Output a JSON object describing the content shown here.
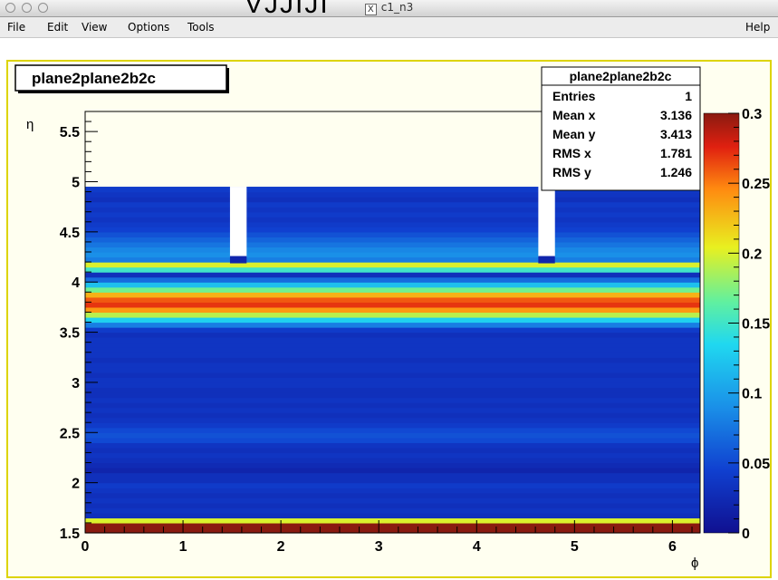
{
  "window": {
    "title": "c1_n3",
    "top_fragment": "VJJIJI"
  },
  "menu": {
    "file": "File",
    "edit": "Edit",
    "view": "View",
    "options": "Options",
    "tools": "Tools",
    "help": "Help"
  },
  "colors": {
    "frame_border": "#ddd400",
    "canvas_bg": "#fffff0"
  },
  "chart_data": {
    "type": "heatmap",
    "title": "plane2plane2b2c",
    "xlabel": "ϕ",
    "ylabel": "η",
    "xlim": [
      0,
      6.283
    ],
    "ylim": [
      1.5,
      5.7
    ],
    "zlim": [
      0,
      0.3
    ],
    "x_ticks": [
      "0",
      "1",
      "2",
      "3",
      "4",
      "5",
      "6"
    ],
    "y_ticks": [
      "1.5",
      "2",
      "2.5",
      "3",
      "3.5",
      "4",
      "4.5",
      "5",
      "5.5"
    ],
    "z_ticks": [
      "0",
      "0.05",
      "0.1",
      "0.15",
      "0.2",
      "0.25",
      "0.3"
    ],
    "y_edges": [
      1.6,
      1.65,
      1.7,
      1.75,
      1.8,
      1.85,
      1.9,
      1.95,
      2.0,
      2.05,
      2.1,
      2.15,
      2.2,
      2.25,
      2.3,
      2.35,
      2.4,
      2.45,
      2.5,
      2.55,
      2.6,
      2.65,
      2.7,
      2.75,
      2.8,
      2.85,
      2.9,
      2.95,
      3.0,
      3.05,
      3.1,
      3.15,
      3.2,
      3.25,
      3.3,
      3.35,
      3.4,
      3.45,
      3.5,
      3.55,
      3.6,
      3.65,
      3.7,
      3.75,
      3.8,
      3.85,
      3.9,
      3.95,
      4.0,
      4.05,
      4.1,
      4.15,
      4.2,
      4.25,
      4.3,
      4.35,
      4.4,
      4.45,
      4.5,
      4.55,
      4.6,
      4.65,
      4.7,
      4.75,
      4.8,
      4.85,
      4.9,
      4.95
    ],
    "row_values": [
      0.3,
      0.2,
      0.03,
      0.035,
      0.03,
      0.035,
      0.03,
      0.035,
      0.04,
      0.03,
      0.03,
      0.02,
      0.025,
      0.03,
      0.035,
      0.03,
      0.035,
      0.05,
      0.055,
      0.05,
      0.04,
      0.035,
      0.03,
      0.035,
      0.03,
      0.035,
      0.03,
      0.03,
      0.035,
      0.035,
      0.03,
      0.035,
      0.035,
      0.03,
      0.035,
      0.035,
      0.035,
      0.035,
      0.03,
      0.04,
      0.08,
      0.13,
      0.19,
      0.24,
      0.27,
      0.26,
      0.23,
      0.17,
      0.12,
      0.07,
      0.03,
      0.15,
      0.2,
      0.08,
      0.09,
      0.085,
      0.075,
      0.065,
      0.055,
      0.045,
      0.04,
      0.035,
      0.04,
      0.035,
      0.04,
      0.03,
      0.035,
      0.04
    ],
    "gaps": [
      {
        "x_from": 1.48,
        "x_to": 1.65,
        "y_from": 4.25,
        "y_to": 4.95
      },
      {
        "x_from": 4.63,
        "x_to": 4.8,
        "y_from": 4.25,
        "y_to": 4.95
      }
    ],
    "stats": {
      "title": "plane2plane2b2c",
      "rows": [
        {
          "label": "Entries",
          "value": "1"
        },
        {
          "label": "Mean x",
          "value": "3.136"
        },
        {
          "label": "Mean y",
          "value": "3.413"
        },
        {
          "label": "RMS x",
          "value": "1.781"
        },
        {
          "label": "RMS y",
          "value": "1.246"
        }
      ]
    }
  }
}
